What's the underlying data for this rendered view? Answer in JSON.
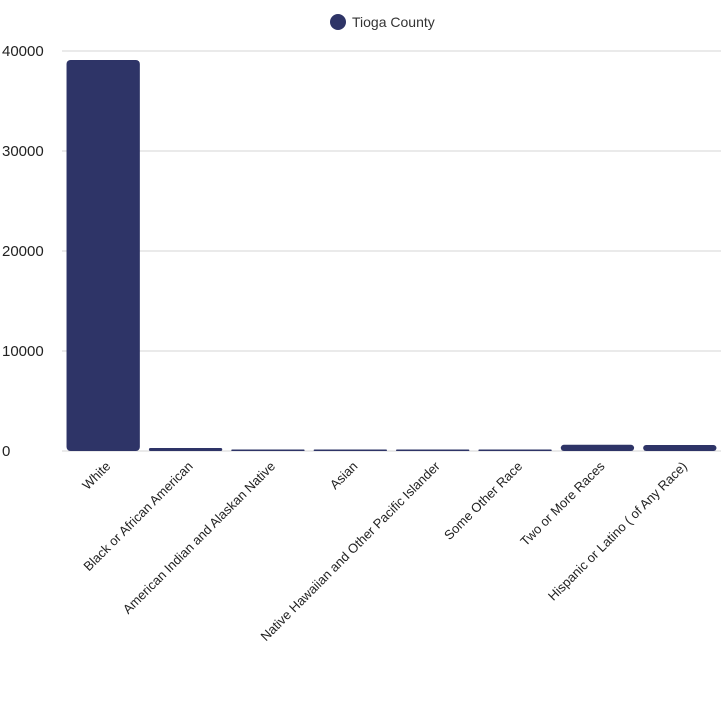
{
  "chart_data": {
    "type": "bar",
    "categories": [
      "White",
      "Black or African American",
      "American Indian and Alaskan Native",
      "Asian",
      "Native Hawaiian and Other Pacific Islander",
      "Some Other Race",
      "Two or More Races",
      "Hispanic or Latino ( of Any Race)"
    ],
    "series": [
      {
        "name": "Tioga County",
        "values": [
          39100,
          300,
          40,
          120,
          10,
          60,
          620,
          600
        ]
      }
    ],
    "y_ticks": [
      "0",
      "10000",
      "20000",
      "30000",
      "40000"
    ],
    "ylim": [
      0,
      40000
    ],
    "grid": true,
    "legend": "top-center",
    "colors": {
      "bar": "#2e3467",
      "grid": "#d4d4d4"
    }
  }
}
